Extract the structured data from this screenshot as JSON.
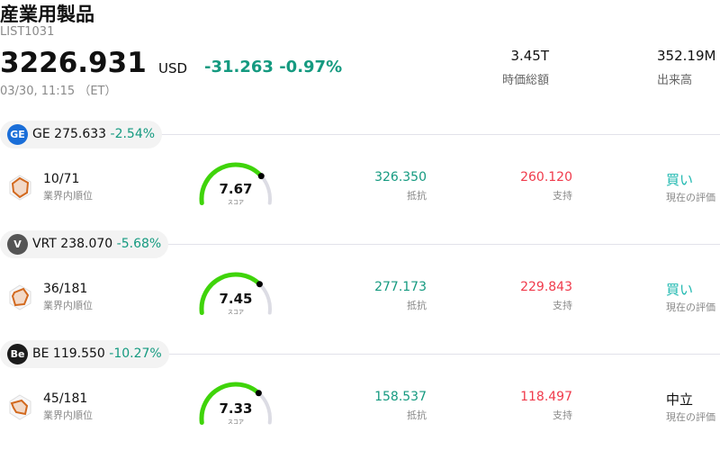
{
  "header": {
    "title": "産業用製品",
    "code": "LIST1031",
    "price": "3226.931",
    "currency": "USD",
    "change": "-31.263 -0.97%",
    "time": "03/30, 11:15 （ET）",
    "market_cap": "3.45T",
    "market_cap_label": "時価総額",
    "volume": "352.19M",
    "volume_label": "出来高"
  },
  "colors": {
    "up_green": "#159a80",
    "down_red": "#f03a4b",
    "buy": "#1fb8b0",
    "gauge": "#3fd40a"
  },
  "stocks": [
    {
      "ticker": "GE",
      "price": "275.633",
      "pct": "-2.54%",
      "logo_text": "GE",
      "logo_color": "#1a6ed8",
      "rank": "10/71",
      "rank_label": "業界内順位",
      "score": 7.67,
      "score_text": "7.67",
      "score_label": "スコア",
      "resistance": "326.350",
      "resistance_label": "抵抗",
      "support": "260.120",
      "support_label": "支持",
      "eval": "買い",
      "eval_color": "#1fb8b0",
      "eval_label": "現在の評価"
    },
    {
      "ticker": "VRT",
      "price": "238.070",
      "pct": "-5.68%",
      "logo_text": "V",
      "logo_color": "#555555",
      "rank": "36/181",
      "rank_label": "業界内順位",
      "score": 7.45,
      "score_text": "7.45",
      "score_label": "スコア",
      "resistance": "277.173",
      "resistance_label": "抵抗",
      "support": "229.843",
      "support_label": "支持",
      "eval": "買い",
      "eval_color": "#1fb8b0",
      "eval_label": "現在の評価"
    },
    {
      "ticker": "BE",
      "price": "119.550",
      "pct": "-10.27%",
      "logo_text": "Be",
      "logo_color": "#1b1b1b",
      "rank": "45/181",
      "rank_label": "業界内順位",
      "score": 7.33,
      "score_text": "7.33",
      "score_label": "スコア",
      "resistance": "158.537",
      "resistance_label": "抵抗",
      "support": "118.497",
      "support_label": "支持",
      "eval": "中立",
      "eval_color": "#111111",
      "eval_label": "現在の評価"
    }
  ]
}
